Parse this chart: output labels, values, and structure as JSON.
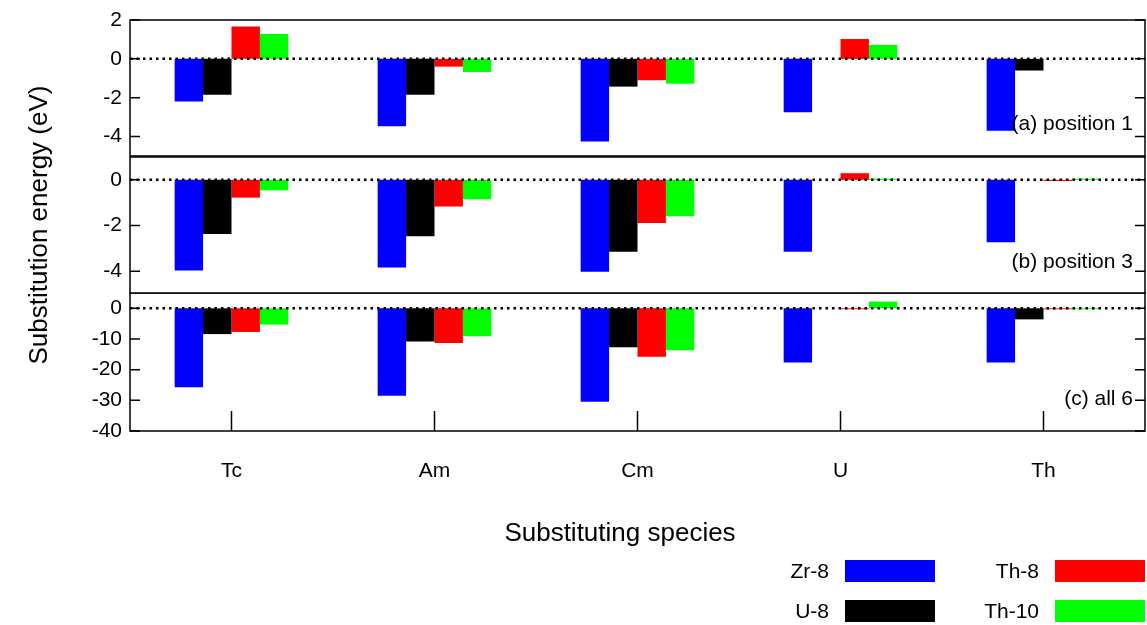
{
  "chart_data": [
    {
      "type": "bar",
      "categories": [
        null,
        null,
        null,
        null,
        null
      ],
      "ylim": [
        -5,
        2
      ],
      "yticks": [
        -4,
        -2,
        0,
        2
      ],
      "tick_labels": "y",
      "annotations": [
        "(a) position 1"
      ],
      "ref_lines": [
        {
          "axis": "y",
          "value": 0,
          "line_style": "dotted",
          "color": "#000000"
        }
      ],
      "series": [
        {
          "color": "#0000ff",
          "values": [
            -2.2,
            -3.47,
            -4.26,
            -2.75,
            -3.7
          ]
        },
        {
          "color": "#000000",
          "values": [
            -1.85,
            -1.85,
            -1.43,
            0,
            -0.6
          ]
        },
        {
          "color": "#ff0000",
          "values": [
            1.66,
            -0.4,
            -1.1,
            1.02,
            0
          ]
        },
        {
          "color": "#00ff00",
          "values": [
            1.28,
            -0.68,
            -1.28,
            0.72,
            0
          ]
        }
      ]
    },
    {
      "type": "bar",
      "categories": [
        null,
        null,
        null,
        null,
        null
      ],
      "ylim": [
        -5,
        1
      ],
      "yticks": [
        -4,
        -2,
        0
      ],
      "tick_labels": "y",
      "ylabel": "Substitution energy (eV)",
      "annotations": [
        "(b) position 3"
      ],
      "ref_lines": [
        {
          "axis": "y",
          "value": 0,
          "line_style": "dotted",
          "color": "#000000"
        }
      ],
      "series": [
        {
          "color": "#0000ff",
          "values": [
            -3.97,
            -3.84,
            -4.03,
            -3.15,
            -2.73
          ]
        },
        {
          "color": "#000000",
          "values": [
            -2.37,
            -2.47,
            -3.15,
            0,
            0
          ]
        },
        {
          "color": "#ff0000",
          "values": [
            -0.78,
            -1.17,
            -1.89,
            0.29,
            -0.05
          ]
        },
        {
          "color": "#00ff00",
          "values": [
            -0.46,
            -0.85,
            -1.59,
            0.05,
            0.05
          ]
        }
      ]
    },
    {
      "type": "bar",
      "categories": [
        "Tc",
        "Am",
        "Cm",
        "U",
        "Th"
      ],
      "ylim": [
        -40,
        5
      ],
      "yticks": [
        -40,
        -30,
        -20,
        -10,
        0
      ],
      "xlabel": "Substituting species",
      "legend": "bottom right",
      "annotations": [
        "(c) all 6"
      ],
      "ref_lines": [
        {
          "axis": "y",
          "value": 0,
          "line_style": "dotted",
          "color": "#000000"
        }
      ],
      "series": [
        {
          "name": "Zr-8",
          "color": "#0000ff",
          "values": [
            -25.7,
            -28.5,
            -30.5,
            -17.7,
            -17.7
          ]
        },
        {
          "name": "U-8",
          "color": "#000000",
          "values": [
            -8.4,
            -10.8,
            -12.7,
            0,
            -3.6
          ]
        },
        {
          "name": "Th-8",
          "color": "#ff0000",
          "values": [
            -7.7,
            -11.3,
            -15.8,
            -0.3,
            -0.3
          ]
        },
        {
          "name": "Th-10",
          "color": "#00ff00",
          "values": [
            -5.3,
            -9.1,
            -13.7,
            2.2,
            -0.3
          ]
        }
      ]
    }
  ]
}
